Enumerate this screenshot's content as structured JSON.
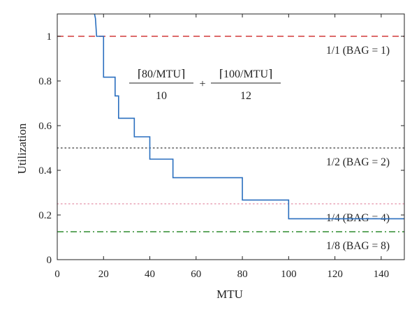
{
  "chart_data": {
    "type": "line",
    "xlabel": "MTU",
    "ylabel": "Utilization",
    "xlim": [
      0,
      150
    ],
    "ylim": [
      0,
      1.1
    ],
    "xticks": [
      0,
      20,
      40,
      60,
      80,
      100,
      120,
      140
    ],
    "yticks": [
      0,
      0.2,
      0.4,
      0.6,
      0.8,
      1
    ],
    "grid": false,
    "series": [
      {
        "color": "#2a6fbf",
        "x": [
          16.1,
          16.5,
          17,
          20,
          20,
          25,
          25,
          26.5,
          26.5,
          33.3,
          33.3,
          40,
          40,
          50,
          50,
          80,
          80,
          100,
          100,
          150
        ],
        "y": [
          1.1,
          1.08,
          1.0,
          1.0,
          0.817,
          0.817,
          0.733,
          0.733,
          0.633,
          0.633,
          0.55,
          0.55,
          0.45,
          0.45,
          0.367,
          0.367,
          0.267,
          0.267,
          0.183,
          0.183
        ]
      }
    ],
    "reference_lines": [
      {
        "y": 1.0,
        "label": "1/1 (BAG = 1)",
        "color": "#d23a3a",
        "style": "dashed"
      },
      {
        "y": 0.5,
        "label": "1/2 (BAG = 2)",
        "color": "#555555",
        "style": "dotted"
      },
      {
        "y": 0.25,
        "label": "1/4 (BAG = 4)",
        "color": "#e8a0b4",
        "style": "dotted"
      },
      {
        "y": 0.125,
        "label": "1/8 (BAG = 8)",
        "color": "#2e8b2e",
        "style": "dashdot"
      }
    ],
    "annotation": {
      "term1_numerator": "⌈80/MTU⌉",
      "term1_denominator": "10",
      "operator": "+",
      "term2_numerator": "⌈100/MTU⌉",
      "term2_denominator": "12"
    }
  }
}
